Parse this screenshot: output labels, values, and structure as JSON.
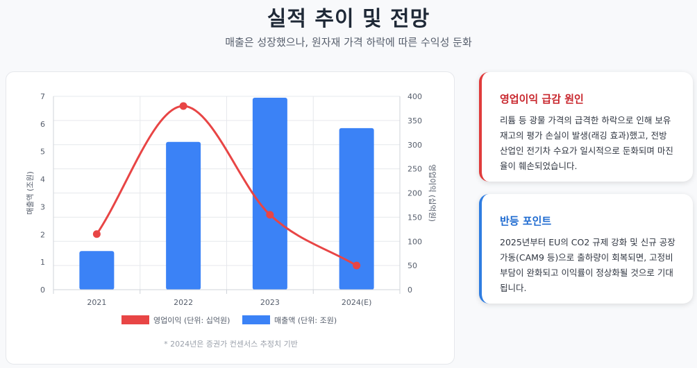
{
  "header": {
    "title": "실적 추이 및 전망",
    "subtitle": "매출은 성장했으나, 원자재 가격 하락에 따른 수익성 둔화"
  },
  "chart_data": {
    "type": "bar",
    "categories": [
      "2021",
      "2022",
      "2023",
      "2024(E)"
    ],
    "series": [
      {
        "name": "영업이익 (단위: 십억원)",
        "type": "line",
        "axis": "right",
        "color": "#e84545",
        "values": [
          115,
          380,
          155,
          50
        ]
      },
      {
        "name": "매출액 (단위: 조원)",
        "type": "bar",
        "axis": "left",
        "color": "#3b82f6",
        "values": [
          1.4,
          5.35,
          6.95,
          5.85
        ]
      }
    ],
    "ylabel": "매출액 (조원)",
    "y2label": "영업이익 (십억원)",
    "ylim": [
      0,
      7
    ],
    "y2lim": [
      0,
      400
    ],
    "yticks": [
      "0",
      "1",
      "2",
      "3",
      "4",
      "5",
      "6",
      "7"
    ],
    "y2ticks": [
      "0",
      "50",
      "100",
      "150",
      "200",
      "250",
      "300",
      "350",
      "400"
    ],
    "grid": true,
    "legend": "bottom",
    "footnote": "* 2024년은 증권가 컨센서스 추정치 기반"
  },
  "cards": [
    {
      "title": "영업이익 급감 원인",
      "body": "리튬 등 광물 가격의 급격한 하락으로 인해 보유 재고의 평가 손실이 발생(래깅 효과)했고, 전방 산업인 전기차 수요가 일시적으로 둔화되며 마진율이 훼손되었습니다.",
      "accent": "#e03b3b"
    },
    {
      "title": "반등 포인트",
      "body": "2025년부터 EU의 CO2 규제 강화 및 신규 공장 가동(CAM9 등)으로 출하량이 회복되면, 고정비 부담이 완화되고 이익률이 정상화될 것으로 기대됩니다.",
      "accent": "#2f7de1"
    }
  ]
}
